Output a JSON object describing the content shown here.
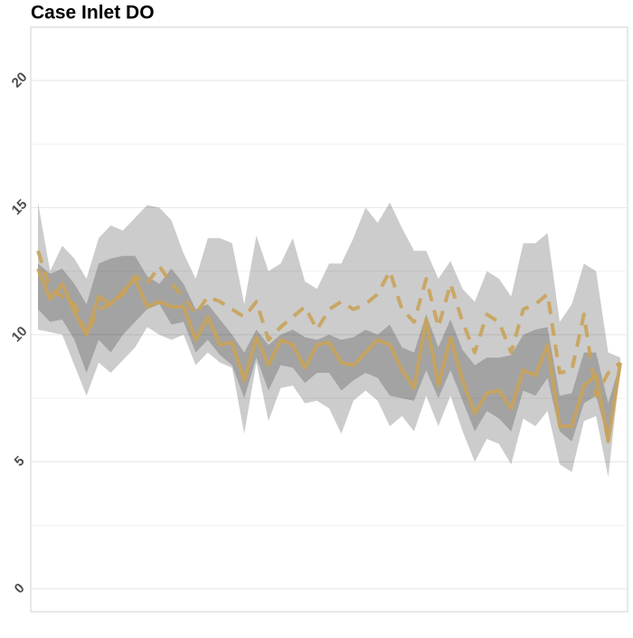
{
  "chart_data": {
    "type": "line",
    "title": "Case Inlet DO",
    "categories": [
      null,
      null,
      null,
      null,
      null,
      null,
      null,
      null,
      null,
      null,
      null,
      null,
      null,
      null,
      null,
      null,
      null,
      null,
      null,
      null,
      null,
      null,
      null,
      null,
      null,
      null,
      null,
      null,
      null,
      null,
      null,
      null,
      null,
      null,
      null,
      null,
      null,
      null,
      null,
      null,
      null,
      null,
      null,
      null,
      null,
      null,
      null,
      null,
      null
    ],
    "ylim": [
      -0.9,
      22.1
    ],
    "yticks": [
      0,
      5,
      10,
      15,
      20
    ],
    "minor_yticks": [
      2.5,
      7.5,
      12.5,
      17.5
    ],
    "grid": true,
    "bands": [
      {
        "color": "#000000",
        "opacity": 0.2,
        "high": [
          15.2,
          12.5,
          13.5,
          13.0,
          12.2,
          13.8,
          14.3,
          14.1,
          14.6,
          15.1,
          15.0,
          14.5,
          13.2,
          12.2,
          13.8,
          13.8,
          13.6,
          11.2,
          13.9,
          12.5,
          12.8,
          13.8,
          12.1,
          11.8,
          12.8,
          12.8,
          13.8,
          15.0,
          14.4,
          15.2,
          14.2,
          13.3,
          13.3,
          12.2,
          12.9,
          11.8,
          11.3,
          12.5,
          12.2,
          11.5,
          13.6,
          13.6,
          14.0,
          10.5,
          11.2,
          12.8,
          12.5,
          9.3,
          9.1
        ],
        "low": [
          10.2,
          10.1,
          10.0,
          8.8,
          7.6,
          8.9,
          8.5,
          9.0,
          9.5,
          10.3,
          10.0,
          9.8,
          10.0,
          8.8,
          9.3,
          8.9,
          8.7,
          6.1,
          8.9,
          6.6,
          7.9,
          8.0,
          7.3,
          7.4,
          7.1,
          6.1,
          7.4,
          7.8,
          7.4,
          6.4,
          6.8,
          6.2,
          7.6,
          6.4,
          7.6,
          6.2,
          5.0,
          5.9,
          5.7,
          4.9,
          6.7,
          6.4,
          7.0,
          4.9,
          4.6,
          6.6,
          6.8,
          4.4,
          8.7
        ]
      },
      {
        "color": "#000000",
        "opacity": 0.2,
        "high": [
          12.8,
          12.4,
          12.6,
          12.0,
          11.2,
          12.8,
          13.0,
          13.1,
          13.1,
          12.3,
          12.0,
          12.6,
          12.0,
          11.0,
          11.2,
          10.6,
          10.0,
          9.3,
          10.2,
          9.6,
          10.0,
          10.2,
          9.9,
          9.8,
          10.0,
          9.8,
          9.9,
          10.2,
          10.0,
          10.4,
          9.5,
          9.3,
          10.8,
          9.5,
          10.6,
          9.4,
          8.8,
          9.1,
          9.1,
          9.2,
          10.0,
          10.2,
          10.3,
          7.6,
          7.7,
          9.3,
          9.3,
          7.3,
          8.9
        ],
        "low": [
          11.0,
          10.5,
          10.6,
          9.8,
          8.5,
          9.8,
          9.3,
          10.0,
          10.5,
          11.0,
          11.2,
          10.4,
          10.5,
          9.3,
          9.8,
          9.2,
          8.8,
          7.5,
          9.1,
          7.8,
          8.8,
          8.7,
          8.1,
          8.5,
          8.5,
          7.8,
          8.2,
          8.5,
          8.3,
          7.6,
          7.5,
          7.4,
          8.6,
          7.5,
          8.6,
          7.4,
          6.2,
          7.0,
          6.7,
          6.2,
          7.8,
          7.6,
          8.3,
          6.2,
          5.8,
          7.3,
          7.6,
          5.8,
          8.7
        ]
      }
    ],
    "series": [
      {
        "color": "#c9a35a",
        "dashed": false,
        "values": [
          12.6,
          11.4,
          12.0,
          10.9,
          10.0,
          11.5,
          11.2,
          11.7,
          12.2,
          11.1,
          11.3,
          11.1,
          11.1,
          9.8,
          10.7,
          9.6,
          9.7,
          8.2,
          9.9,
          8.8,
          9.8,
          9.6,
          8.7,
          9.6,
          9.7,
          8.9,
          8.8,
          9.3,
          9.8,
          9.6,
          8.6,
          7.9,
          10.6,
          8.0,
          9.9,
          8.2,
          6.9,
          7.7,
          7.8,
          7.1,
          8.6,
          8.4,
          9.6,
          6.4,
          6.4,
          8.0,
          8.4,
          5.8,
          8.9
        ]
      },
      {
        "color": "#c9a35a",
        "dashed": true,
        "values": [
          13.3,
          11.8,
          11.5,
          11.2,
          10.0,
          11.0,
          11.2,
          11.6,
          12.3,
          12.0,
          12.7,
          12.0,
          11.5,
          10.8,
          11.5,
          11.3,
          11.0,
          10.7,
          11.3,
          9.8,
          10.3,
          10.7,
          11.1,
          10.2,
          11.0,
          11.3,
          11.0,
          11.2,
          11.6,
          12.5,
          11.0,
          10.5,
          12.2,
          10.3,
          12.0,
          10.5,
          9.3,
          10.8,
          10.5,
          9.3,
          11.0,
          11.2,
          11.6,
          8.5,
          8.6,
          10.8,
          7.6,
          8.5,
          8.9
        ]
      }
    ]
  }
}
